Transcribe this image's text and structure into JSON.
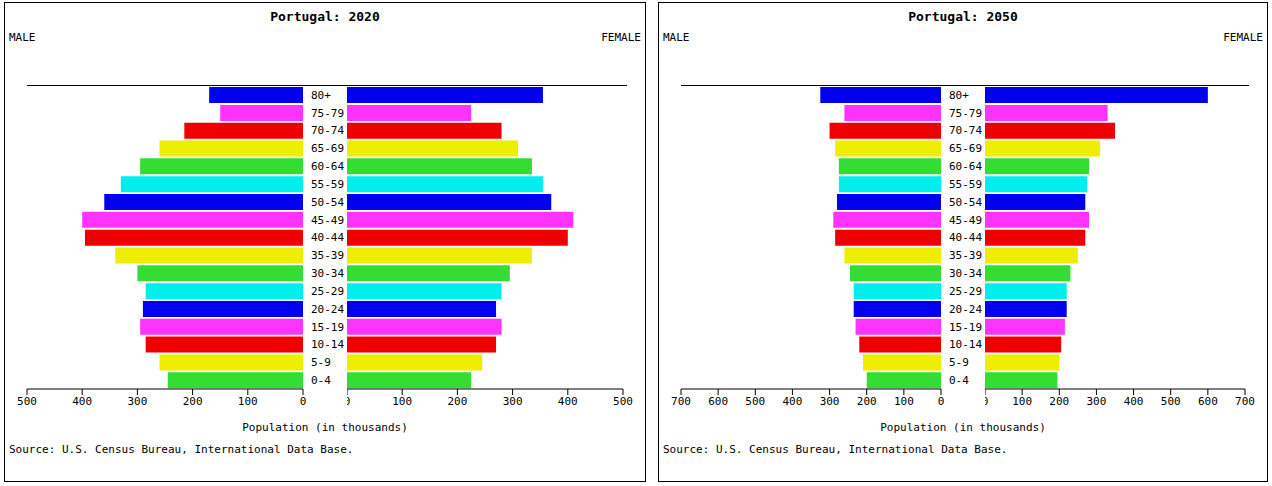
{
  "chart_data": [
    {
      "type": "bar",
      "orientation": "horizontal",
      "title": "Portugal: 2020",
      "xlabel": "Population (in thousands)",
      "annotations": [
        "Source: U.S. Census Bureau, International Data Base."
      ],
      "categories": [
        "0-4",
        "5-9",
        "10-14",
        "15-19",
        "20-24",
        "25-29",
        "30-34",
        "35-39",
        "40-44",
        "45-49",
        "50-54",
        "55-59",
        "60-64",
        "65-69",
        "70-74",
        "75-79",
        "80+"
      ],
      "series": [
        {
          "name": "MALE",
          "values": [
            245,
            260,
            285,
            295,
            290,
            285,
            300,
            340,
            395,
            400,
            360,
            330,
            295,
            260,
            215,
            150,
            170
          ]
        },
        {
          "name": "FEMALE",
          "values": [
            225,
            245,
            270,
            280,
            270,
            280,
            295,
            335,
            400,
            410,
            370,
            355,
            335,
            310,
            280,
            225,
            355
          ]
        }
      ],
      "colors": [
        "#33dd33",
        "#eeee00",
        "#ee0000",
        "#ff33ff",
        "#0000ee",
        "#00eeee",
        "#33dd33",
        "#eeee00",
        "#ee0000",
        "#ff33ff",
        "#0000ee",
        "#00eeee",
        "#33dd33",
        "#eeee00",
        "#ee0000",
        "#ff33ff",
        "#0000ee"
      ],
      "xlim": [
        0,
        500
      ],
      "xticks": [
        0,
        100,
        200,
        300,
        400,
        500
      ]
    },
    {
      "type": "bar",
      "orientation": "horizontal",
      "title": "Portugal: 2050",
      "xlabel": "Population (in thousands)",
      "annotations": [
        "Source: U.S. Census Bureau, International Data Base."
      ],
      "categories": [
        "0-4",
        "5-9",
        "10-14",
        "15-19",
        "20-24",
        "25-29",
        "30-34",
        "35-39",
        "40-44",
        "45-49",
        "50-54",
        "55-59",
        "60-64",
        "65-69",
        "70-74",
        "75-79",
        "80+"
      ],
      "series": [
        {
          "name": "MALE",
          "values": [
            200,
            210,
            220,
            230,
            235,
            235,
            245,
            260,
            285,
            290,
            280,
            275,
            275,
            285,
            300,
            260,
            325
          ]
        },
        {
          "name": "FEMALE",
          "values": [
            195,
            200,
            205,
            215,
            220,
            220,
            230,
            250,
            270,
            280,
            270,
            275,
            280,
            310,
            350,
            330,
            600
          ]
        }
      ],
      "colors": [
        "#33dd33",
        "#eeee00",
        "#ee0000",
        "#ff33ff",
        "#0000ee",
        "#00eeee",
        "#33dd33",
        "#eeee00",
        "#ee0000",
        "#ff33ff",
        "#0000ee",
        "#00eeee",
        "#33dd33",
        "#eeee00",
        "#ee0000",
        "#ff33ff",
        "#0000ee"
      ],
      "xlim": [
        0,
        700
      ],
      "xticks": [
        0,
        100,
        200,
        300,
        400,
        500,
        600,
        700
      ]
    }
  ]
}
